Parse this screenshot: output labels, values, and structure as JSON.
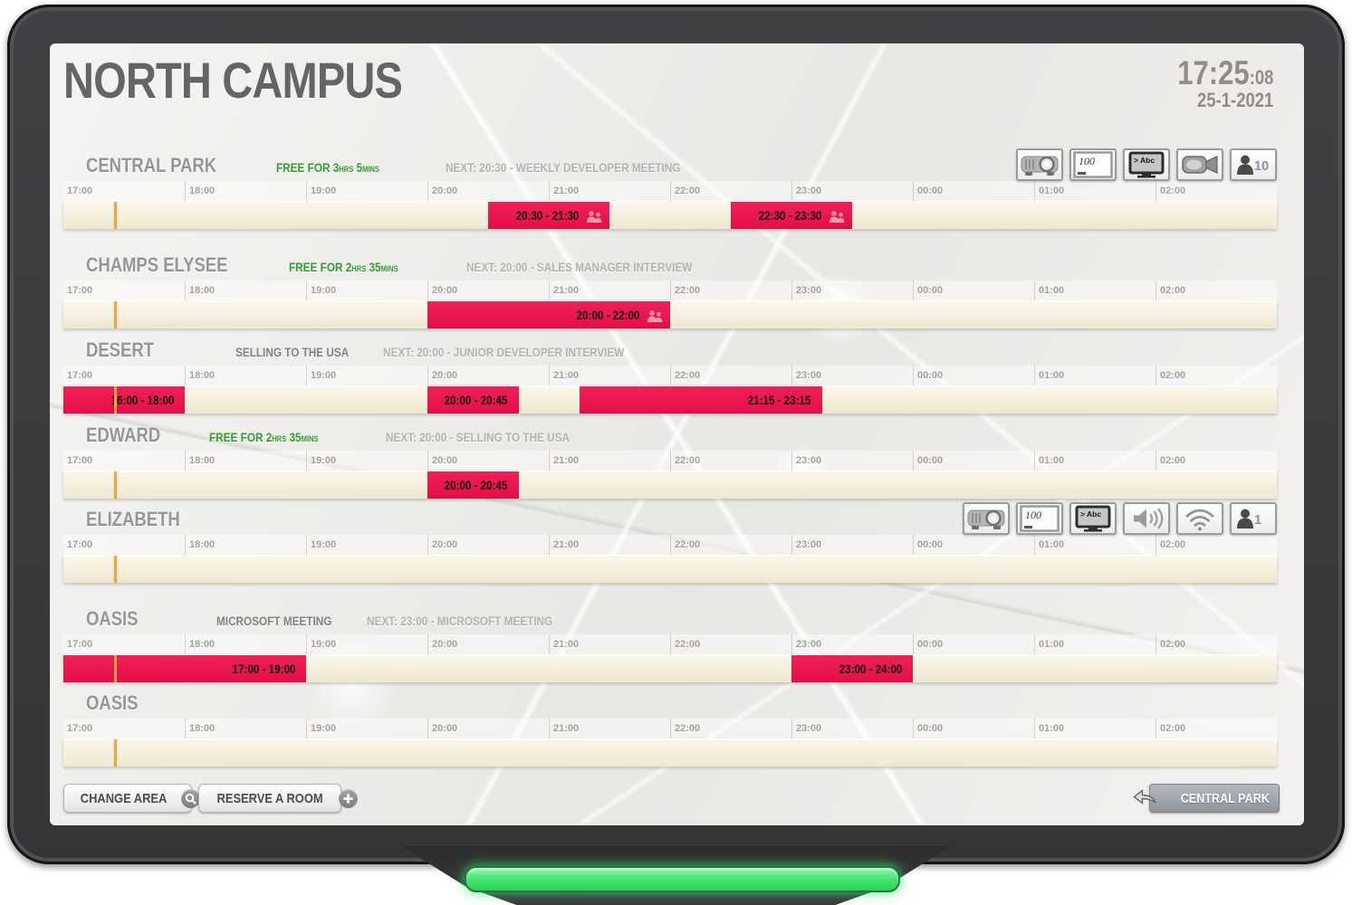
{
  "header": {
    "title": "NORTH CAMPUS",
    "clock_time": "17:25",
    "clock_seconds": ":08",
    "date": "25-1-2021"
  },
  "timeline": {
    "hours": [
      "17:00",
      "18:00",
      "19:00",
      "20:00",
      "21:00",
      "22:00",
      "23:00",
      "00:00",
      "01:00",
      "02:00"
    ],
    "span_hours": 10,
    "current_time_percent": 4.1667
  },
  "rooms": [
    {
      "name": "CENTRAL PARK",
      "free_parts": [
        {
          "text": "FREE FOR 3",
          "unit": false
        },
        {
          "text": "HRS",
          "unit": true
        },
        {
          "text": " 5",
          "unit": false
        },
        {
          "text": "MINS",
          "unit": true
        }
      ],
      "current_meeting": "",
      "next": "NEXT: 20:30 - WEEKLY DEVELOPER MEETING",
      "icons": [
        {
          "type": "projector"
        },
        {
          "type": "whiteboard",
          "value": "100"
        },
        {
          "type": "tv",
          "value": "> Abc"
        },
        {
          "type": "camera"
        },
        {
          "type": "capacity",
          "value": "10"
        }
      ],
      "bookings": [
        {
          "label": "20:30 - 21:30",
          "start_pct": 35,
          "width_pct": 10,
          "attendees_icon": true
        },
        {
          "label": "22:30 - 23:30",
          "start_pct": 55,
          "width_pct": 10,
          "attendees_icon": true
        }
      ]
    },
    {
      "name": "CHAMPS ELYSEE",
      "free_parts": [
        {
          "text": "FREE FOR 2",
          "unit": false
        },
        {
          "text": "HRS",
          "unit": true
        },
        {
          "text": " 35",
          "unit": false
        },
        {
          "text": "MINS",
          "unit": true
        }
      ],
      "current_meeting": "",
      "next": "NEXT: 20:00 - SALES MANAGER INTERVIEW",
      "icons": [],
      "bookings": [
        {
          "label": "20:00 - 22:00",
          "start_pct": 30,
          "width_pct": 20,
          "attendees_icon": true
        }
      ]
    },
    {
      "name": "DESERT",
      "free_parts": null,
      "current_meeting": "SELLING TO THE USA",
      "next": "NEXT: 20:00 - JUNIOR DEVELOPER INTERVIEW",
      "icons": [],
      "bookings": [
        {
          "label": "16:00 - 18:00",
          "start_pct": 0,
          "width_pct": 10,
          "attendees_icon": false
        },
        {
          "label": "20:00 - 20:45",
          "start_pct": 30,
          "width_pct": 7.5,
          "attendees_icon": false
        },
        {
          "label": "21:15 - 23:15",
          "start_pct": 42.5,
          "width_pct": 20,
          "attendees_icon": false
        }
      ]
    },
    {
      "name": "EDWARD",
      "free_parts": [
        {
          "text": "FREE FOR 2",
          "unit": false
        },
        {
          "text": "HRS",
          "unit": true
        },
        {
          "text": " 35",
          "unit": false
        },
        {
          "text": "MINS",
          "unit": true
        }
      ],
      "current_meeting": "",
      "next": "NEXT: 20:00 - SELLING TO THE USA",
      "icons": [],
      "bookings": [
        {
          "label": "20:00 - 20:45",
          "start_pct": 30,
          "width_pct": 7.5,
          "attendees_icon": false
        }
      ]
    },
    {
      "name": "ELIZABETH",
      "free_parts": null,
      "current_meeting": "",
      "next": "",
      "icons": [
        {
          "type": "projector"
        },
        {
          "type": "whiteboard",
          "value": "100"
        },
        {
          "type": "tv",
          "value": "> Abc"
        },
        {
          "type": "speaker"
        },
        {
          "type": "wifi"
        },
        {
          "type": "capacity",
          "value": "1"
        }
      ],
      "bookings": []
    },
    {
      "name": "OASIS",
      "free_parts": null,
      "current_meeting": "MICROSOFT MEETING",
      "next": "NEXT: 23:00 - MICROSOFT MEETING",
      "icons": [],
      "bookings": [
        {
          "label": "17:00 - 19:00",
          "start_pct": 0,
          "width_pct": 20,
          "attendees_icon": false
        },
        {
          "label": "23:00 - 24:00",
          "start_pct": 60,
          "width_pct": 10,
          "attendees_icon": false
        }
      ]
    },
    {
      "name": "OASIS",
      "free_parts": null,
      "current_meeting": "",
      "next": "",
      "icons": [],
      "bookings": []
    }
  ],
  "footer": {
    "change_area": "CHANGE AREA",
    "reserve_room": "RESERVE A ROOM",
    "room_shortcut": "CENTRAL PARK"
  },
  "colors": {
    "booking_red": "#e8114b",
    "free_green": "#2f9e2f",
    "current_time_orange": "#f0a63c",
    "led_green": "#41e16a"
  }
}
